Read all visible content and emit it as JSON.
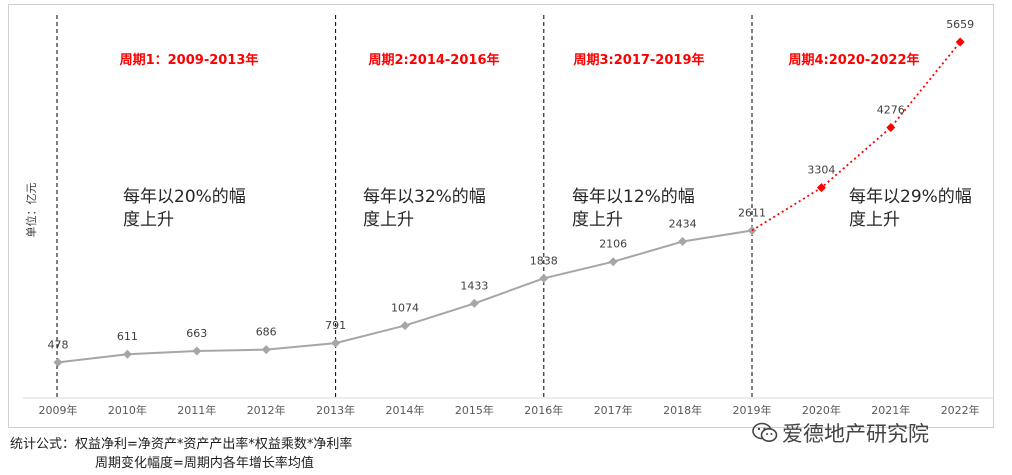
{
  "chart_data": {
    "type": "line",
    "categories": [
      "2009年",
      "2010年",
      "2011年",
      "2012年",
      "2013年",
      "2014年",
      "2015年",
      "2016年",
      "2017年",
      "2018年",
      "2019年",
      "2020年",
      "2021年",
      "2022年"
    ],
    "series": [
      {
        "values": [
          478,
          611,
          663,
          686,
          791,
          1074,
          1433,
          1838,
          2106,
          2434,
          2611,
          null,
          null,
          null
        ],
        "color": "#a6a6a6",
        "style": "solid",
        "marker": "diamond"
      },
      {
        "values": [
          null,
          null,
          null,
          null,
          null,
          null,
          null,
          null,
          null,
          null,
          2611,
          3304,
          4276,
          5659
        ],
        "color": "#ff0000",
        "style": "dotted",
        "marker": "diamond"
      }
    ],
    "data_labels": [
      "478",
      "611",
      "663",
      "686",
      "791",
      "1074",
      "1433",
      "1838",
      "2106",
      "2434",
      "2611",
      "3304",
      "4276",
      "5659"
    ],
    "ylabel": "单位：亿元",
    "ylim": [
      0,
      6000
    ],
    "grid": false,
    "period_dividers_after": [
      "2013年",
      "2016年",
      "2019年"
    ],
    "periods": [
      {
        "title": "周期1：2009-2013年",
        "note_line1": "每年以20%的幅",
        "note_line2": "度上升"
      },
      {
        "title": "周期2:2014-2016年",
        "note_line1": "每年以32%的幅",
        "note_line2": "度上升"
      },
      {
        "title": "周期3:2017-2019年",
        "note_line1": "每年以12%的幅",
        "note_line2": "度上升"
      },
      {
        "title": "周期4:2020-2022年",
        "note_line1": "每年以29%的幅",
        "note_line2": "度上升"
      }
    ],
    "period_title_color": "#ff0000"
  },
  "footer": {
    "formula_line1": "统计公式：权益净利=净资产*资产产出率*权益乘数*净利率",
    "formula_line2": "周期变化幅度=周期内各年增长率均值"
  },
  "watermark": {
    "text": "爱德地产研究院",
    "icon": "wechat-icon"
  }
}
